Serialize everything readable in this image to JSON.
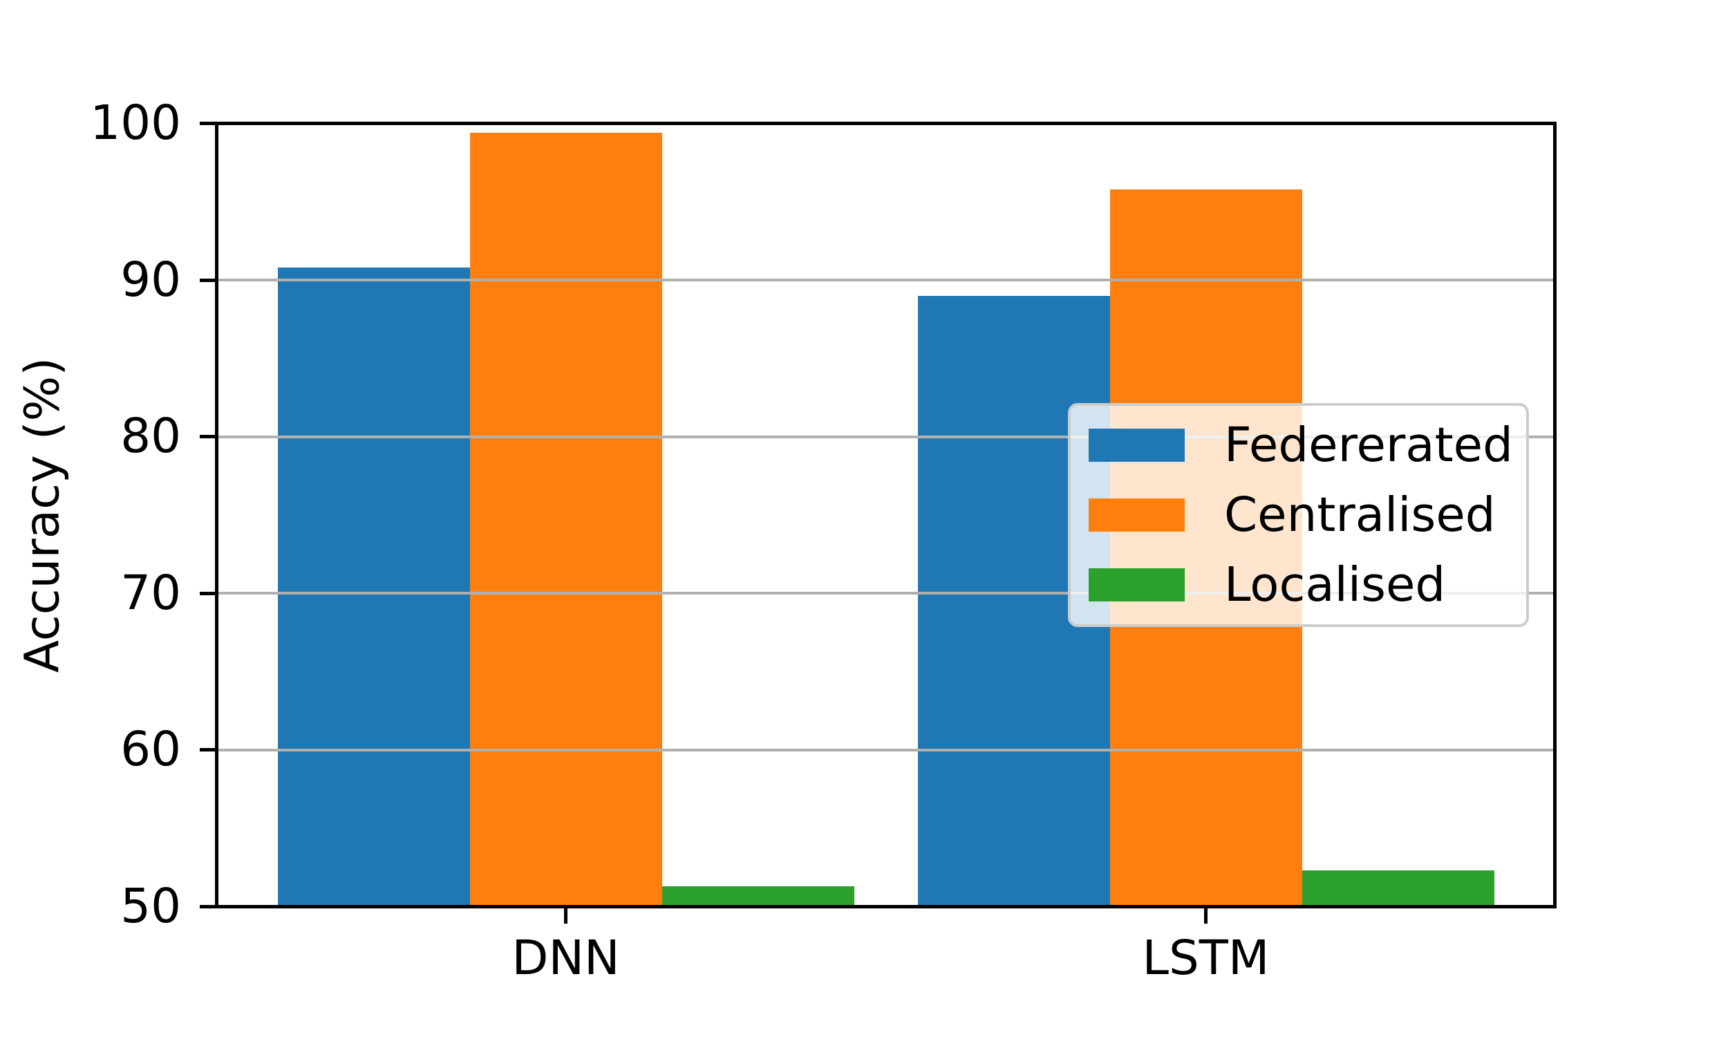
{
  "chart_data": {
    "type": "bar",
    "categories": [
      "DNN",
      "LSTM"
    ],
    "series": [
      {
        "name": "Federerated",
        "color": "#1f77b4",
        "values": [
          90.8,
          89.0
        ]
      },
      {
        "name": "Centralised",
        "color": "#ff7f0e",
        "values": [
          99.4,
          95.8
        ]
      },
      {
        "name": "Localised",
        "color": "#2ca02c",
        "values": [
          51.3,
          52.3
        ]
      }
    ],
    "title": "",
    "xlabel": "",
    "ylabel": "Accuracy (%)",
    "ylim": [
      50,
      100
    ],
    "yticks": [
      50,
      60,
      70,
      80,
      90,
      100
    ],
    "grid": true,
    "grid_color": "#b0b0b0",
    "axis_color": "#000000",
    "background_color": "#ffffff",
    "legend": {
      "position": "center right",
      "entries": [
        "Federerated",
        "Centralised",
        "Localised"
      ]
    }
  }
}
